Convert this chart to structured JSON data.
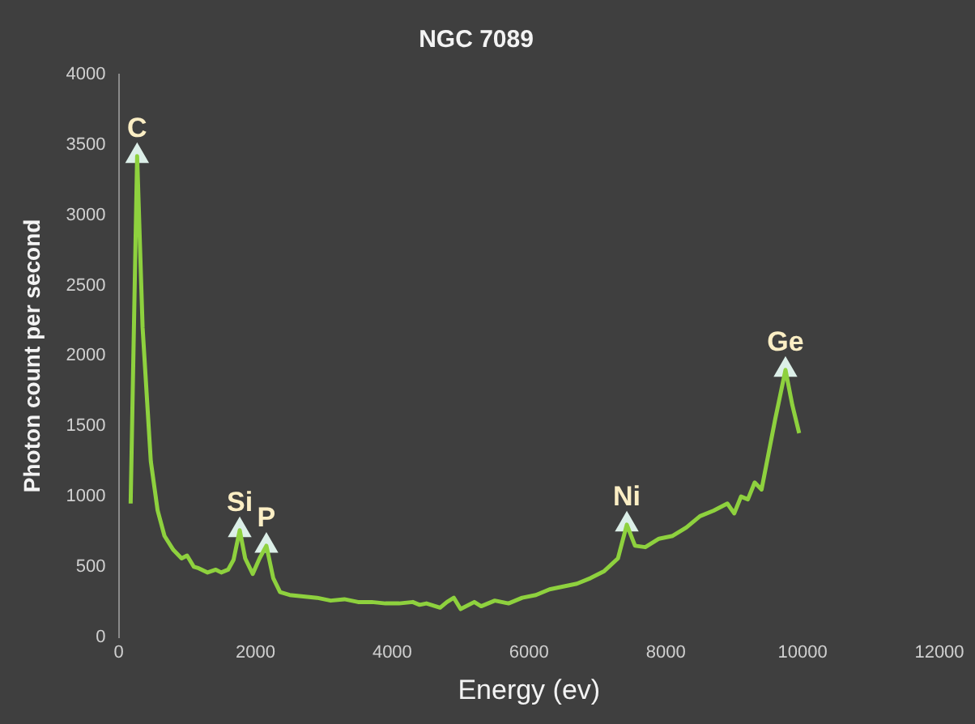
{
  "chart_data": {
    "type": "line",
    "title": "NGC 7089",
    "xlabel": "Energy (ev)",
    "ylabel": "Photon count per second",
    "x": [
      175,
      270,
      350,
      470,
      570,
      670,
      800,
      920,
      1000,
      1100,
      1170,
      1300,
      1420,
      1500,
      1600,
      1680,
      1770,
      1850,
      1960,
      2060,
      2160,
      2260,
      2360,
      2500,
      2700,
      2900,
      3100,
      3300,
      3500,
      3700,
      3900,
      4100,
      4300,
      4400,
      4500,
      4700,
      4800,
      4900,
      5000,
      5200,
      5300,
      5500,
      5700,
      5900,
      6100,
      6300,
      6500,
      6700,
      6900,
      7100,
      7300,
      7430,
      7550,
      7700,
      7900,
      8100,
      8300,
      8500,
      8700,
      8900,
      9000,
      9100,
      9200,
      9300,
      9400,
      9500,
      9600,
      9750,
      9850,
      9950
    ],
    "series": [
      {
        "color": "#8ed13e",
        "values": [
          950,
          3420,
          2200,
          1250,
          900,
          720,
          620,
          560,
          580,
          500,
          490,
          460,
          480,
          460,
          480,
          550,
          760,
          560,
          450,
          560,
          650,
          420,
          320,
          300,
          290,
          280,
          260,
          270,
          250,
          250,
          240,
          240,
          250,
          230,
          240,
          210,
          250,
          280,
          200,
          250,
          220,
          260,
          240,
          280,
          300,
          340,
          360,
          380,
          420,
          470,
          560,
          800,
          650,
          640,
          700,
          720,
          780,
          860,
          900,
          950,
          880,
          1000,
          980,
          1100,
          1050,
          1300,
          1550,
          1900,
          1650,
          1450
        ]
      },
      {
        "type": "scatter",
        "marker": "triangle",
        "color": "#dcefe8",
        "x": [
          270,
          1770,
          2160,
          7430,
          9750
        ],
        "values": [
          3420,
          760,
          650,
          800,
          1900
        ]
      }
    ],
    "xlim": [
      0,
      12000
    ],
    "xticks": [
      0,
      2000,
      4000,
      6000,
      8000,
      10000,
      12000
    ],
    "ylim": [
      0,
      4000
    ],
    "yticks": [
      0,
      500,
      1000,
      1500,
      2000,
      2500,
      3000,
      3500,
      4000
    ],
    "grid": false,
    "legend": false,
    "marker": "none",
    "line_style": "solid",
    "annotations": [
      {
        "text": "C",
        "x": 270,
        "y": 3420
      },
      {
        "text": "Si",
        "x": 1770,
        "y": 760
      },
      {
        "text": "P",
        "x": 2160,
        "y": 650
      },
      {
        "text": "Ni",
        "x": 7430,
        "y": 800
      },
      {
        "text": "Ge",
        "x": 9750,
        "y": 1900
      }
    ]
  }
}
